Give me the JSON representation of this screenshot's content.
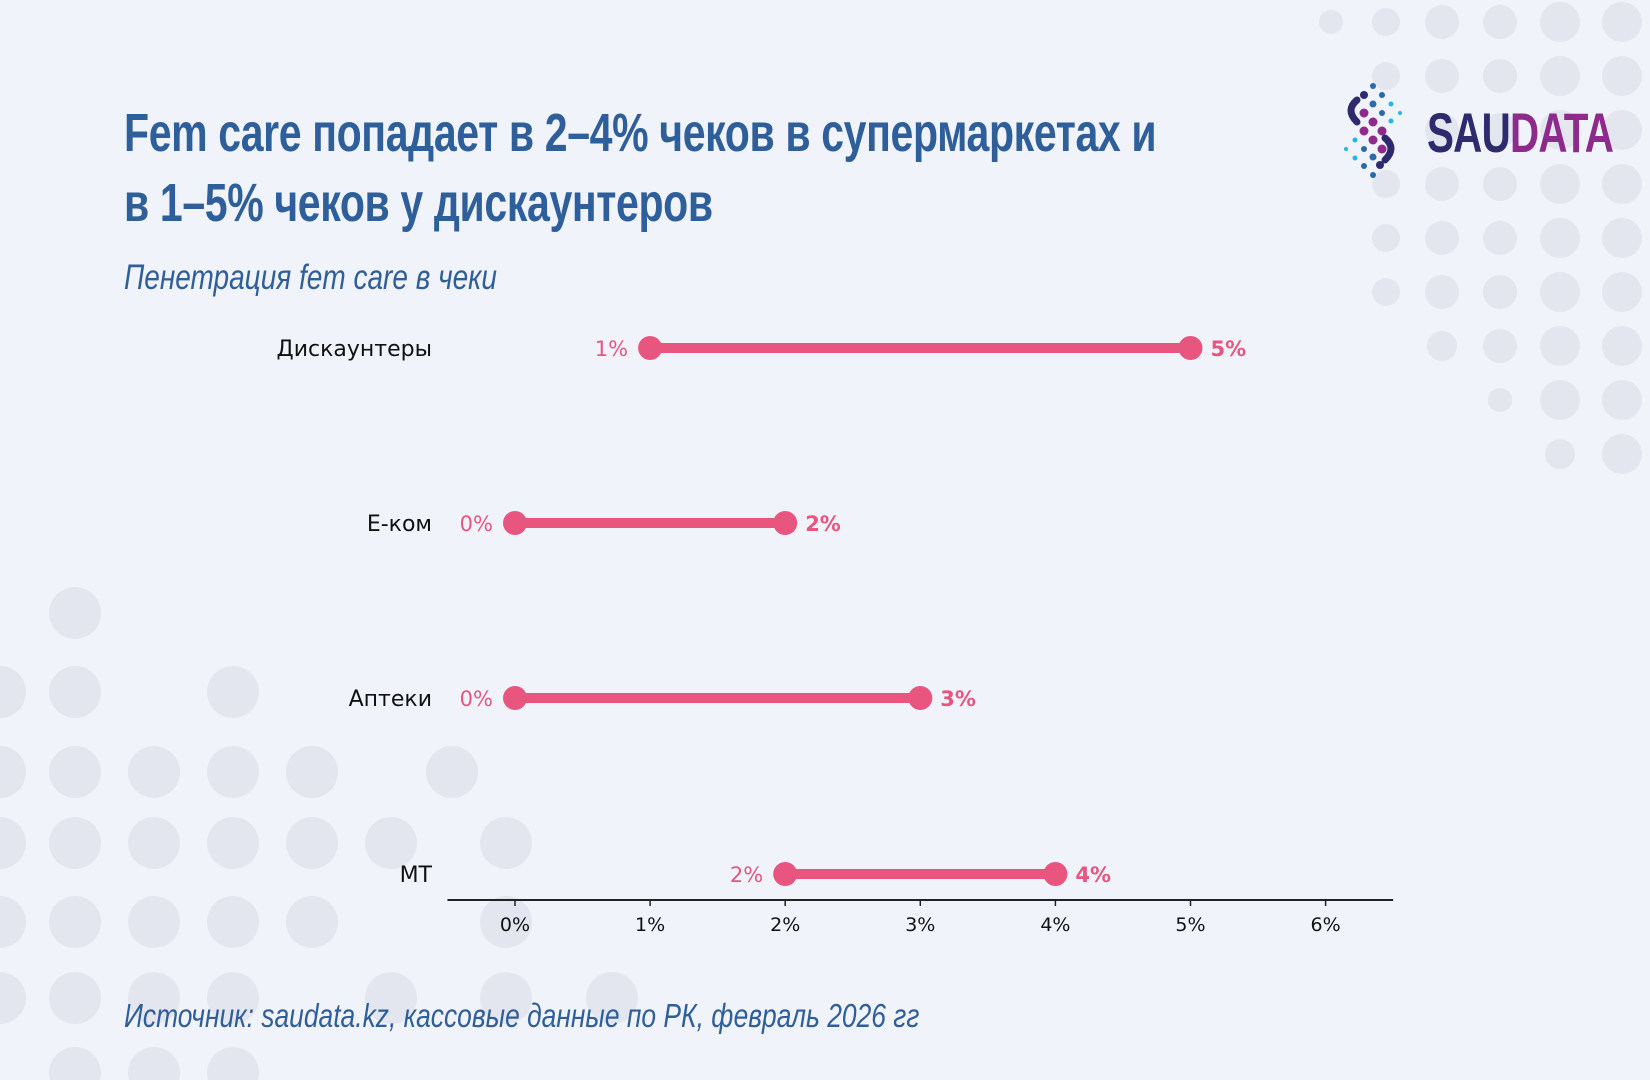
{
  "header": {
    "title_line1": "Fem care попадает в 2–4% чеков в супермаркетах и",
    "title_line2": "в 1–5% чеков у дискаунтеров",
    "subtitle": "Пенетрация fem care в чеки"
  },
  "logo": {
    "text_part1": "SAU",
    "text_part2": "DATA",
    "color1": "#2d2a6e",
    "color2": "#8e2a8b"
  },
  "footer": {
    "source": "Источник: saudata.kz, кассовые данные по РК,  февраль 2026 гг"
  },
  "chart_data": {
    "type": "dumbbell",
    "categories": [
      "Дискаунтеры",
      "Е-ком",
      "Аптеки",
      "МТ"
    ],
    "min_values": [
      1,
      0,
      0,
      2
    ],
    "max_values": [
      5,
      2,
      3,
      4
    ],
    "min_labels": [
      "1%",
      "0%",
      "0%",
      "2%"
    ],
    "max_labels": [
      "5%",
      "2%",
      "3%",
      "4%"
    ],
    "x_ticks": [
      0,
      1,
      2,
      3,
      4,
      5,
      6
    ],
    "x_tick_labels": [
      "0%",
      "1%",
      "2%",
      "3%",
      "4%",
      "5%",
      "6%"
    ],
    "xlim": [
      -0.5,
      6.5
    ],
    "grid": false,
    "color": "#e8567f",
    "background": "#f0f3fa"
  }
}
